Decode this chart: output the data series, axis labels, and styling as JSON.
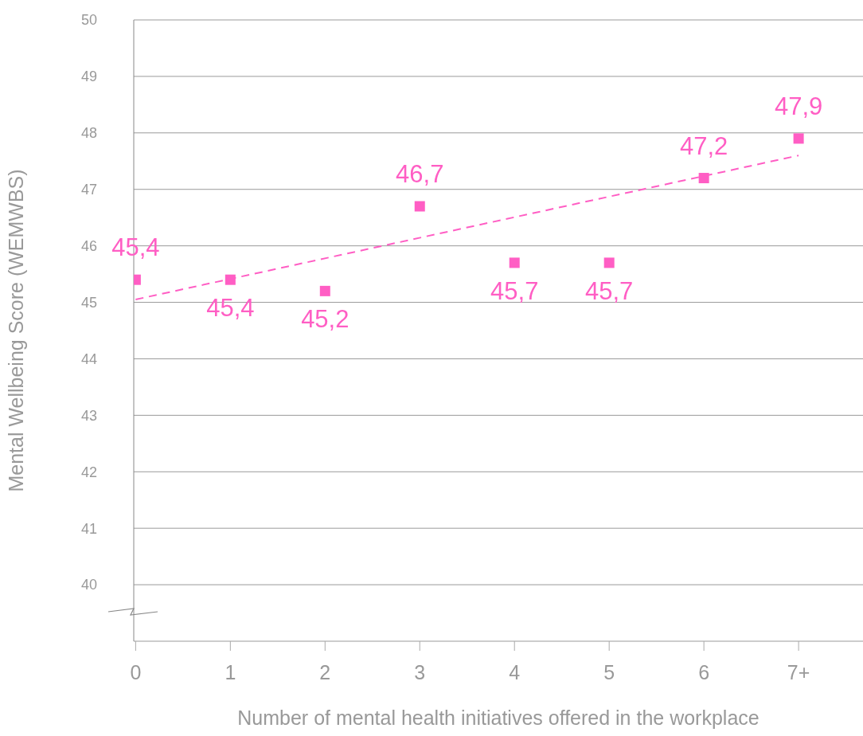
{
  "chart_data": {
    "type": "scatter",
    "xlabel": "Number of mental health initiatives offered in the workplace",
    "ylabel": "Mental Wellbeing Score (WEMWBS)",
    "categories": [
      "0",
      "1",
      "2",
      "3",
      "4",
      "5",
      "6",
      "7+"
    ],
    "series": [
      {
        "color": "#ff5ec4",
        "values": [
          45.4,
          45.4,
          45.2,
          46.7,
          45.7,
          45.7,
          47.2,
          47.9
        ],
        "value_labels": [
          "45,4",
          "45,4",
          "45,2",
          "46,7",
          "45,7",
          "45,7",
          "47,2",
          "47,9"
        ],
        "marker": "square"
      },
      {
        "type": "line",
        "color": "#ff5ec4",
        "x": [
          "0",
          "7+"
        ],
        "values": [
          45.05,
          47.6
        ],
        "line_style": "dashed"
      }
    ],
    "ylim": [
      39,
      50
    ],
    "yticks": [
      40,
      41,
      42,
      43,
      44,
      45,
      46,
      47,
      48,
      49,
      50
    ],
    "grid": "y"
  }
}
